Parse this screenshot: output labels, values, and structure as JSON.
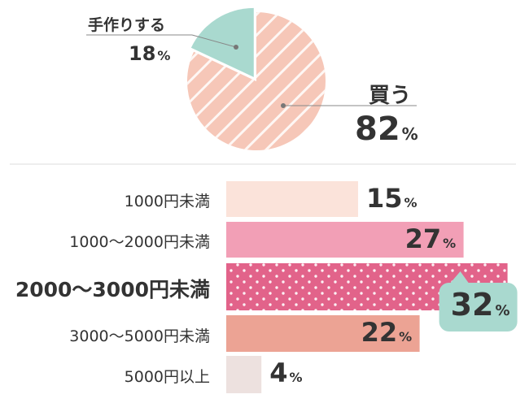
{
  "chart_data": [
    {
      "type": "pie",
      "categories": [
        "買う",
        "手作りする"
      ],
      "values": [
        82,
        18
      ],
      "value_suffix": "%",
      "colors": [
        "#f6c7b8",
        "#a9d9cf"
      ],
      "title": ""
    },
    {
      "type": "bar",
      "orientation": "horizontal",
      "categories": [
        "1000円未満",
        "1000〜2000円未満",
        "2000〜3000円未満",
        "3000〜5000円未満",
        "5000円以上"
      ],
      "values": [
        15,
        27,
        32,
        22,
        4
      ],
      "value_suffix": "%",
      "highlight_index": 2,
      "colors": [
        "#fbe3da",
        "#f29fb6",
        "#e2638a",
        "#eca394",
        "#ede1df"
      ],
      "callout_color": "#a9d9cf",
      "title": ""
    }
  ]
}
